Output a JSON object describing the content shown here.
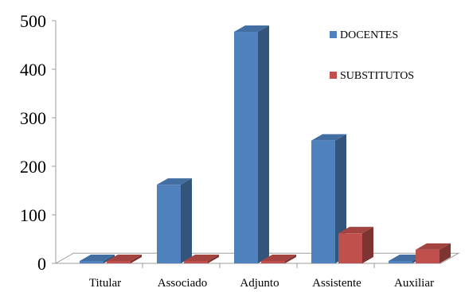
{
  "chart_data": {
    "type": "bar",
    "title": "",
    "xlabel": "",
    "ylabel": "",
    "categories": [
      "Titular",
      "Associado",
      "Adjunto",
      "Assistente",
      "Auxiliar"
    ],
    "series": [
      {
        "name": "DOCENTES",
        "values": [
          5,
          162,
          477,
          253,
          5
        ],
        "color": "#4f81bd"
      },
      {
        "name": "SUBSTITUTOS",
        "values": [
          0,
          0,
          4,
          62,
          28
        ],
        "color": "#c0504d"
      }
    ],
    "ylim": [
      0,
      500
    ],
    "yticks": [
      0,
      100,
      200,
      300,
      400,
      500
    ],
    "grid": false,
    "legend": "top-right",
    "style": "3d-column"
  }
}
